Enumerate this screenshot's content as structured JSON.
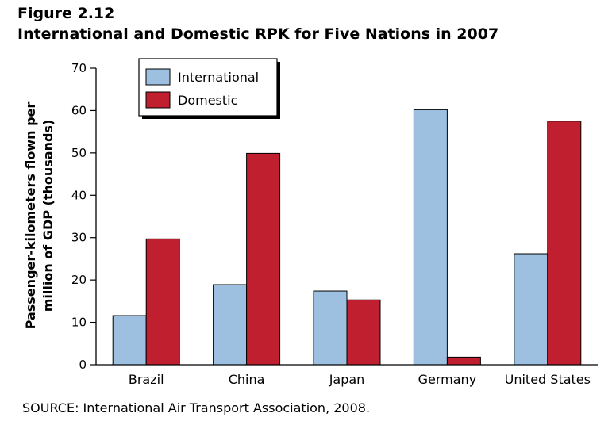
{
  "figure_label": "Figure 2.12",
  "source": "SOURCE: International Air Transport Association, 2008.",
  "colors": {
    "international": "#9dc0e0",
    "domestic": "#c01f30",
    "outline": "#000000"
  },
  "chart_data": {
    "type": "bar",
    "title": "International and Domestic RPK for Five Nations in 2007",
    "xlabel": "",
    "ylabel_lines": [
      "Passenger-kilometers flown per",
      "million of GDP (thousands)"
    ],
    "ylim": [
      0,
      70
    ],
    "yticks": [
      "0",
      "10",
      "20",
      "30",
      "40",
      "50",
      "60",
      "70"
    ],
    "categories": [
      "Brazil",
      "China",
      "Japan",
      "Germany",
      "United States"
    ],
    "series": [
      {
        "name": "International",
        "values": [
          11.6,
          18.9,
          17.4,
          60.2,
          26.2
        ]
      },
      {
        "name": "Domestic",
        "values": [
          29.7,
          49.9,
          15.3,
          1.8,
          57.5
        ]
      }
    ],
    "legend_position": "top-left",
    "grid": false
  }
}
